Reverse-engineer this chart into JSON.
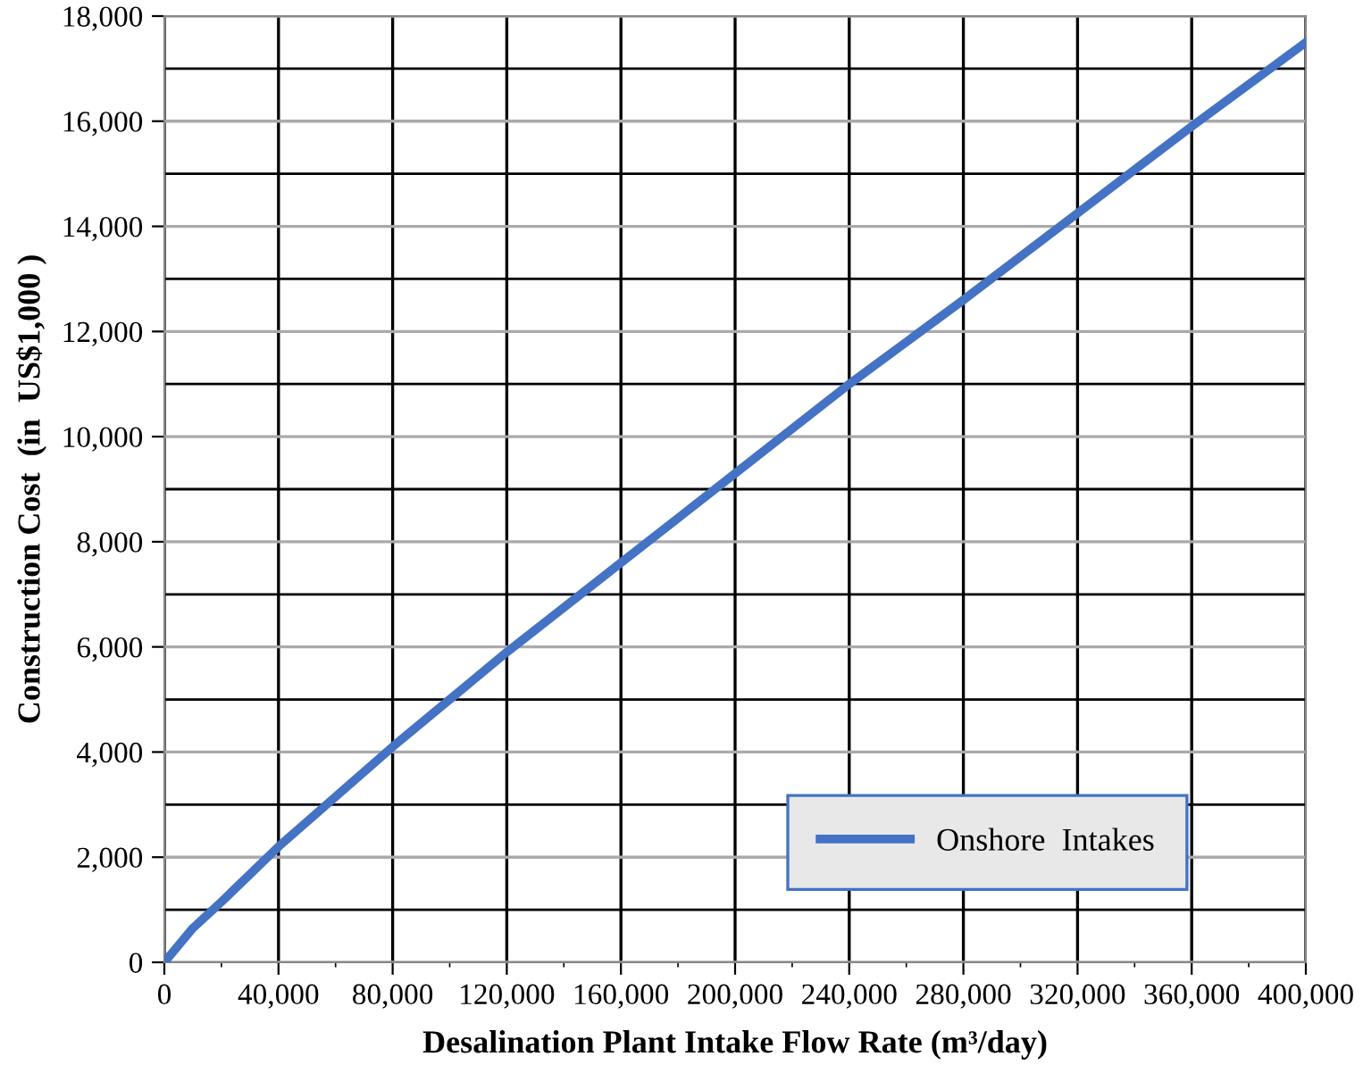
{
  "chart_data": {
    "type": "line",
    "xlabel": "Desalination Plant Intake Flow Rate (m³/day)",
    "ylabel": "Construction Cost  (in  US$1,000 )",
    "x": [
      0,
      10000,
      20000,
      40000,
      80000,
      120000,
      160000,
      200000,
      240000,
      280000,
      320000,
      360000,
      400000
    ],
    "series": [
      {
        "name": "Onshore  Intakes",
        "color": "#4472c4",
        "values": [
          0,
          650,
          1150,
          2200,
          4100,
          5900,
          7600,
          9300,
          11000,
          12600,
          14250,
          15900,
          17500
        ]
      }
    ],
    "xlim": [
      0,
      400000
    ],
    "xticks": [
      0,
      {
        "value": 40000,
        "label": "40,000"
      },
      {
        "value": 80000,
        "label": "80,000"
      },
      {
        "value": 120000,
        "label": "120,000"
      },
      {
        "value": 160000,
        "label": "160,000"
      },
      {
        "value": 200000,
        "label": "200,000"
      },
      {
        "value": 240000,
        "label": "240,000"
      },
      {
        "value": 280000,
        "label": "280,000"
      },
      {
        "value": 320000,
        "label": "320,000"
      },
      {
        "value": 360000,
        "label": "360,000"
      },
      {
        "value": 400000,
        "label": "400,000"
      }
    ],
    "ylim": [
      0,
      18000
    ],
    "yticks": [
      0,
      {
        "value": 2000,
        "label": "2,000"
      },
      {
        "value": 4000,
        "label": "4,000"
      },
      {
        "value": 6000,
        "label": "6,000"
      },
      {
        "value": 8000,
        "label": "8,000"
      },
      {
        "value": 10000,
        "label": "10,000"
      },
      {
        "value": 12000,
        "label": "12,000"
      },
      {
        "value": 14000,
        "label": "14,000"
      },
      {
        "value": 16000,
        "label": "16,000"
      },
      {
        "value": 18000,
        "label": "18,000"
      }
    ],
    "grid": true,
    "legend": "bottom right",
    "marker": "none",
    "line_style": "solid"
  }
}
